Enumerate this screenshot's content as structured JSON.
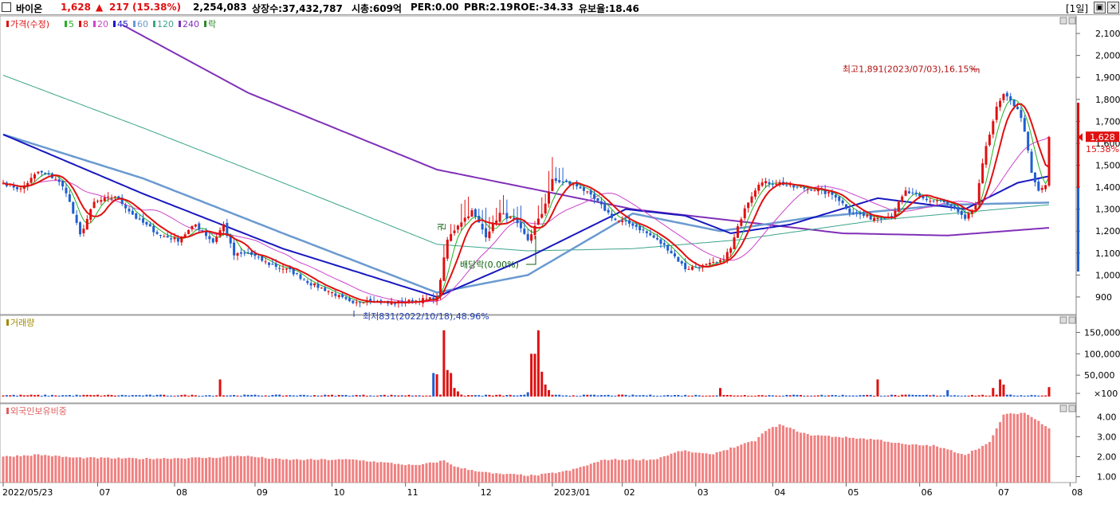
{
  "header": {
    "stock_name": "바이온",
    "price": "1,628",
    "change_arrow": "▲",
    "change": "217",
    "change_pct": "(15.38%)",
    "volume": "2,254,083",
    "listed_shares": "상장수:37,432,787",
    "market_cap": "시총:609억",
    "per": "PER:0.00",
    "pbr": "PBR:2.19",
    "roe": "ROE:-34.33",
    "float_rate": "유보율:18.46",
    "period": "[1일]",
    "restore_icon": "restore-icon",
    "close_icon": "close-icon"
  },
  "colors": {
    "up": "#e01010",
    "down": "#1f5fd0",
    "ma5": "#22b022",
    "ma8": "#e01010",
    "ma20": "#cc44cc",
    "ma45": "#1818c0",
    "ma60": "#6a9ad0",
    "ma120": "#3aa58a",
    "ma240": "#8030b8",
    "volume_label": "#a08a00",
    "foreign_bar": "#f08080",
    "foreign_label": "#e06060"
  },
  "chart_data": [
    {
      "type": "candlestick",
      "panel": "price",
      "legend": [
        {
          "label": "가격(수정)",
          "color": "#e01010"
        },
        {
          "label": "5",
          "color": "#22b022"
        },
        {
          "label": "8",
          "color": "#e01010"
        },
        {
          "label": "20",
          "color": "#cc44cc"
        },
        {
          "label": "45",
          "color": "#1818c0"
        },
        {
          "label": "60",
          "color": "#6a9ad0"
        },
        {
          "label": "120",
          "color": "#3aa58a"
        },
        {
          "label": "240",
          "color": "#8030b8"
        },
        {
          "label": "락",
          "color": "#2a8a2a"
        }
      ],
      "yticks": [
        "900",
        "1,000",
        "1,100",
        "1,200",
        "1,300",
        "1,400",
        "1,500",
        "1,600",
        "1,700",
        "1,800",
        "1,900",
        "2,000",
        "2,100"
      ],
      "yvalues": [
        900,
        1000,
        1100,
        1200,
        1300,
        1400,
        1500,
        1600,
        1700,
        1800,
        1900,
        2000,
        2100
      ],
      "ylim": [
        820,
        2180
      ],
      "xticks": [
        "2022/05/23",
        "07",
        "08",
        "09",
        "10",
        "11",
        "12",
        "2023/01",
        "02",
        "03",
        "04",
        "05",
        "06",
        "07",
        "08"
      ],
      "xtick_index": [
        0,
        27,
        49,
        72,
        94,
        115,
        136,
        157,
        177,
        198,
        220,
        241,
        262,
        284,
        305
      ],
      "bar_count": 300,
      "current": {
        "label": "1,628",
        "pct": "15.38%",
        "value": 1628
      },
      "annotations": {
        "high": {
          "text": "최고1,891(2023/07/03),16.15%",
          "value": 1891
        },
        "low": {
          "text": "최저831(2022/10/18),48.96%",
          "value": 831
        },
        "dividend": {
          "text": "배당락(0.00%)"
        },
        "rights": {
          "text": "권"
        }
      },
      "key_closes": [
        {
          "i": 0,
          "v": 1420
        },
        {
          "i": 5,
          "v": 1390
        },
        {
          "i": 10,
          "v": 1470
        },
        {
          "i": 15,
          "v": 1440
        },
        {
          "i": 18,
          "v": 1380
        },
        {
          "i": 22,
          "v": 1180
        },
        {
          "i": 26,
          "v": 1330
        },
        {
          "i": 32,
          "v": 1360
        },
        {
          "i": 38,
          "v": 1260
        },
        {
          "i": 45,
          "v": 1180
        },
        {
          "i": 50,
          "v": 1160
        },
        {
          "i": 55,
          "v": 1230
        },
        {
          "i": 60,
          "v": 1150
        },
        {
          "i": 63,
          "v": 1230
        },
        {
          "i": 66,
          "v": 1090
        },
        {
          "i": 70,
          "v": 1100
        },
        {
          "i": 76,
          "v": 1050
        },
        {
          "i": 82,
          "v": 1020
        },
        {
          "i": 88,
          "v": 960
        },
        {
          "i": 94,
          "v": 920
        },
        {
          "i": 100,
          "v": 865
        },
        {
          "i": 104,
          "v": 890
        },
        {
          "i": 110,
          "v": 870
        },
        {
          "i": 116,
          "v": 880
        },
        {
          "i": 124,
          "v": 895
        },
        {
          "i": 127,
          "v": 1160
        },
        {
          "i": 130,
          "v": 1230
        },
        {
          "i": 134,
          "v": 1290
        },
        {
          "i": 138,
          "v": 1180
        },
        {
          "i": 142,
          "v": 1280
        },
        {
          "i": 146,
          "v": 1250
        },
        {
          "i": 150,
          "v": 1160
        },
        {
          "i": 154,
          "v": 1280
        },
        {
          "i": 157,
          "v": 1430
        },
        {
          "i": 161,
          "v": 1420
        },
        {
          "i": 165,
          "v": 1400
        },
        {
          "i": 170,
          "v": 1330
        },
        {
          "i": 175,
          "v": 1250
        },
        {
          "i": 180,
          "v": 1230
        },
        {
          "i": 186,
          "v": 1170
        },
        {
          "i": 190,
          "v": 1120
        },
        {
          "i": 195,
          "v": 1030
        },
        {
          "i": 200,
          "v": 1040
        },
        {
          "i": 205,
          "v": 1060
        },
        {
          "i": 208,
          "v": 1120
        },
        {
          "i": 212,
          "v": 1310
        },
        {
          "i": 216,
          "v": 1420
        },
        {
          "i": 222,
          "v": 1420
        },
        {
          "i": 226,
          "v": 1400
        },
        {
          "i": 232,
          "v": 1390
        },
        {
          "i": 238,
          "v": 1360
        },
        {
          "i": 242,
          "v": 1290
        },
        {
          "i": 248,
          "v": 1260
        },
        {
          "i": 254,
          "v": 1270
        },
        {
          "i": 258,
          "v": 1380
        },
        {
          "i": 264,
          "v": 1340
        },
        {
          "i": 268,
          "v": 1340
        },
        {
          "i": 272,
          "v": 1300
        },
        {
          "i": 275,
          "v": 1250
        },
        {
          "i": 278,
          "v": 1320
        },
        {
          "i": 281,
          "v": 1590
        },
        {
          "i": 284,
          "v": 1760
        },
        {
          "i": 286,
          "v": 1820
        },
        {
          "i": 290,
          "v": 1760
        },
        {
          "i": 292,
          "v": 1660
        },
        {
          "i": 294,
          "v": 1460
        },
        {
          "i": 296,
          "v": 1380
        },
        {
          "i": 298,
          "v": 1411
        },
        {
          "i": 299,
          "v": 1628
        }
      ],
      "key_ma": {
        "ma45": [
          {
            "i": 0,
            "v": 1640
          },
          {
            "i": 40,
            "v": 1370
          },
          {
            "i": 80,
            "v": 1120
          },
          {
            "i": 124,
            "v": 900
          },
          {
            "i": 150,
            "v": 1080
          },
          {
            "i": 178,
            "v": 1300
          },
          {
            "i": 195,
            "v": 1270
          },
          {
            "i": 208,
            "v": 1190
          },
          {
            "i": 225,
            "v": 1230
          },
          {
            "i": 250,
            "v": 1350
          },
          {
            "i": 275,
            "v": 1300
          },
          {
            "i": 290,
            "v": 1420
          },
          {
            "i": 299,
            "v": 1450
          }
        ],
        "ma60": [
          {
            "i": 0,
            "v": 1640
          },
          {
            "i": 40,
            "v": 1440
          },
          {
            "i": 80,
            "v": 1190
          },
          {
            "i": 124,
            "v": 920
          },
          {
            "i": 150,
            "v": 1000
          },
          {
            "i": 180,
            "v": 1280
          },
          {
            "i": 205,
            "v": 1200
          },
          {
            "i": 230,
            "v": 1260
          },
          {
            "i": 270,
            "v": 1320
          },
          {
            "i": 299,
            "v": 1330
          }
        ],
        "ma120": [
          {
            "i": 0,
            "v": 1910
          },
          {
            "i": 40,
            "v": 1670
          },
          {
            "i": 80,
            "v": 1420
          },
          {
            "i": 124,
            "v": 1140
          },
          {
            "i": 150,
            "v": 1110
          },
          {
            "i": 180,
            "v": 1120
          },
          {
            "i": 210,
            "v": 1160
          },
          {
            "i": 250,
            "v": 1250
          },
          {
            "i": 299,
            "v": 1320
          }
        ],
        "ma240": [
          {
            "i": 34,
            "v": 2140
          },
          {
            "i": 70,
            "v": 1830
          },
          {
            "i": 124,
            "v": 1480
          },
          {
            "i": 180,
            "v": 1300
          },
          {
            "i": 240,
            "v": 1190
          },
          {
            "i": 270,
            "v": 1180
          },
          {
            "i": 299,
            "v": 1215
          }
        ]
      }
    },
    {
      "type": "bar",
      "panel": "volume",
      "legend": [
        {
          "label": "거래량",
          "color": "#a08a00"
        }
      ],
      "yticks": [
        "×100",
        "50,000",
        "100,000",
        "150,000"
      ],
      "yvalues": [
        0,
        50000,
        100000,
        150000
      ],
      "ylim": [
        -15000,
        190000
      ],
      "unit": "×100",
      "spikes": [
        {
          "i": 62,
          "v": 40000
        },
        {
          "i": 123,
          "v": 55000
        },
        {
          "i": 124,
          "v": 52000
        },
        {
          "i": 126,
          "v": 155000
        },
        {
          "i": 127,
          "v": 62000
        },
        {
          "i": 128,
          "v": 55000
        },
        {
          "i": 129,
          "v": 20000
        },
        {
          "i": 130,
          "v": 12000
        },
        {
          "i": 150,
          "v": 10000
        },
        {
          "i": 151,
          "v": 100000
        },
        {
          "i": 152,
          "v": 100000
        },
        {
          "i": 153,
          "v": 155000
        },
        {
          "i": 154,
          "v": 58000
        },
        {
          "i": 155,
          "v": 28000
        },
        {
          "i": 156,
          "v": 15000
        },
        {
          "i": 205,
          "v": 20000
        },
        {
          "i": 250,
          "v": 40000
        },
        {
          "i": 270,
          "v": 15000
        },
        {
          "i": 283,
          "v": 20000
        },
        {
          "i": 285,
          "v": 40000
        },
        {
          "i": 286,
          "v": 28000
        },
        {
          "i": 299,
          "v": 22000
        }
      ]
    },
    {
      "type": "bar",
      "panel": "foreign_ownership",
      "legend": [
        {
          "label": "외국인보유비중",
          "color": "#e06060"
        }
      ],
      "yticks": [
        "1.00",
        "2.00",
        "3.00",
        "4.00"
      ],
      "yvalues": [
        1,
        2,
        3,
        4
      ],
      "ylim": [
        0.7,
        4.65
      ],
      "key_values": [
        {
          "i": 0,
          "v": 2.0
        },
        {
          "i": 10,
          "v": 2.1
        },
        {
          "i": 20,
          "v": 1.95
        },
        {
          "i": 40,
          "v": 1.9
        },
        {
          "i": 60,
          "v": 1.95
        },
        {
          "i": 68,
          "v": 2.05
        },
        {
          "i": 80,
          "v": 1.85
        },
        {
          "i": 100,
          "v": 1.85
        },
        {
          "i": 118,
          "v": 1.55
        },
        {
          "i": 126,
          "v": 1.8
        },
        {
          "i": 130,
          "v": 1.45
        },
        {
          "i": 140,
          "v": 1.15
        },
        {
          "i": 152,
          "v": 1.05
        },
        {
          "i": 162,
          "v": 1.3
        },
        {
          "i": 172,
          "v": 1.85
        },
        {
          "i": 186,
          "v": 1.85
        },
        {
          "i": 194,
          "v": 2.3
        },
        {
          "i": 202,
          "v": 2.1
        },
        {
          "i": 215,
          "v": 2.8
        },
        {
          "i": 218,
          "v": 3.3
        },
        {
          "i": 222,
          "v": 3.6
        },
        {
          "i": 230,
          "v": 3.1
        },
        {
          "i": 250,
          "v": 2.85
        },
        {
          "i": 258,
          "v": 2.6
        },
        {
          "i": 266,
          "v": 2.55
        },
        {
          "i": 275,
          "v": 2.1
        },
        {
          "i": 282,
          "v": 2.7
        },
        {
          "i": 286,
          "v": 4.1
        },
        {
          "i": 292,
          "v": 4.2
        },
        {
          "i": 299,
          "v": 3.45
        }
      ]
    }
  ]
}
